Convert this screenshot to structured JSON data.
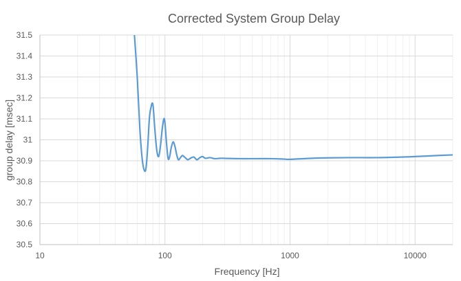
{
  "chart_data": {
    "type": "line",
    "title": "Corrected System Group Delay",
    "xlabel": "Frequency [Hz]",
    "ylabel": "group delay [msec]",
    "xscale": "log",
    "xlim": [
      10,
      20000
    ],
    "ylim": [
      30.5,
      31.5
    ],
    "x_ticks": [
      {
        "value": 10,
        "label": "10"
      },
      {
        "value": 100,
        "label": "100"
      },
      {
        "value": 1000,
        "label": "1000"
      },
      {
        "value": 10000,
        "label": "10000"
      }
    ],
    "y_ticks": [
      {
        "value": 31.5,
        "label": "31.5"
      },
      {
        "value": 31.4,
        "label": "31.4"
      },
      {
        "value": 31.3,
        "label": "31.3"
      },
      {
        "value": 31.2,
        "label": "31.2"
      },
      {
        "value": 31.1,
        "label": "31.1"
      },
      {
        "value": 31.0,
        "label": "31"
      },
      {
        "value": 30.9,
        "label": "30.9"
      },
      {
        "value": 30.8,
        "label": "30.8"
      },
      {
        "value": 30.7,
        "label": "30.7"
      },
      {
        "value": 30.6,
        "label": "30.6"
      },
      {
        "value": 30.5,
        "label": "30.5"
      }
    ],
    "grid": true,
    "legend": false,
    "colors": {
      "line": "#5b9bd5",
      "text": "#595959",
      "major_grid": "#d9d9d9",
      "minor_grid": "#f0f0f0"
    },
    "series": [
      {
        "x": [
          57,
          60,
          63,
          66,
          69,
          71,
          73,
          75,
          77,
          80,
          83,
          86,
          89,
          92,
          95,
          98,
          100,
          103,
          106,
          109,
          112,
          116,
          120,
          124,
          128,
          133,
          138,
          145,
          152,
          160,
          170,
          180,
          190,
          200,
          210,
          230,
          250,
          280,
          320,
          400,
          500,
          700,
          900,
          1000,
          1500,
          2000,
          3000,
          5000,
          8000,
          10000,
          15000,
          20000
        ],
        "y": [
          31.5,
          31.3,
          31.05,
          30.9,
          30.85,
          30.88,
          30.98,
          31.1,
          31.15,
          31.17,
          31.05,
          30.95,
          30.92,
          30.97,
          31.05,
          31.1,
          31.08,
          30.98,
          30.91,
          30.92,
          30.96,
          30.99,
          30.97,
          30.93,
          30.905,
          30.915,
          30.925,
          30.915,
          30.905,
          30.912,
          30.918,
          30.905,
          30.915,
          30.92,
          30.912,
          30.915,
          30.91,
          30.912,
          30.911,
          30.91,
          30.91,
          30.91,
          30.908,
          30.907,
          30.912,
          30.914,
          30.915,
          30.915,
          30.918,
          30.92,
          30.925,
          30.928
        ]
      }
    ]
  }
}
